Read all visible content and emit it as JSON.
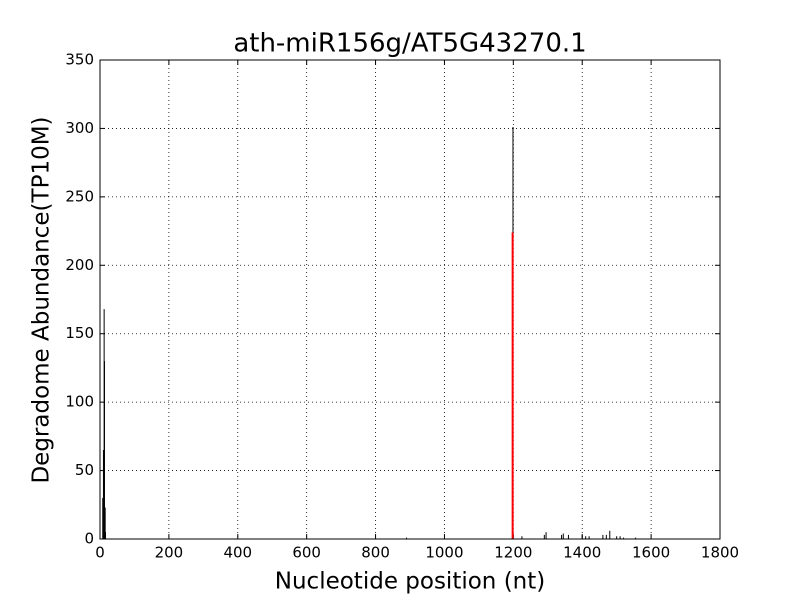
{
  "chart_data": {
    "type": "vlines",
    "title": "ath-miR156g/AT5G43270.1",
    "xlabel": "Nucleotide position (nt)",
    "ylabel": "Degradome Abundance(TP10M)",
    "series": [
      {
        "color": "#000000",
        "linewidth": 1,
        "x": [
          8,
          10,
          12,
          13,
          15,
          16,
          890,
          1199,
          1225,
          1290,
          1295,
          1340,
          1345,
          1360,
          1400,
          1410,
          1420,
          1460,
          1470,
          1480,
          1500,
          1510,
          1520,
          1555
        ],
        "values": [
          30,
          65,
          168,
          130,
          23,
          5,
          1,
          301,
          2,
          3,
          5,
          3,
          4,
          3,
          3,
          2,
          2,
          3,
          3,
          6,
          2,
          2,
          1,
          1
        ]
      },
      {
        "color": "#ff0000",
        "linewidth": 2,
        "x": [
          1198
        ],
        "values": [
          224
        ]
      }
    ],
    "xlim": [
      0,
      1800
    ],
    "xticks": [
      0,
      200,
      400,
      600,
      800,
      1000,
      1200,
      1400,
      1600,
      1800
    ],
    "ylim": [
      0,
      350
    ],
    "yticks": [
      0,
      50,
      100,
      150,
      200,
      250,
      300,
      350
    ],
    "grid": true
  }
}
